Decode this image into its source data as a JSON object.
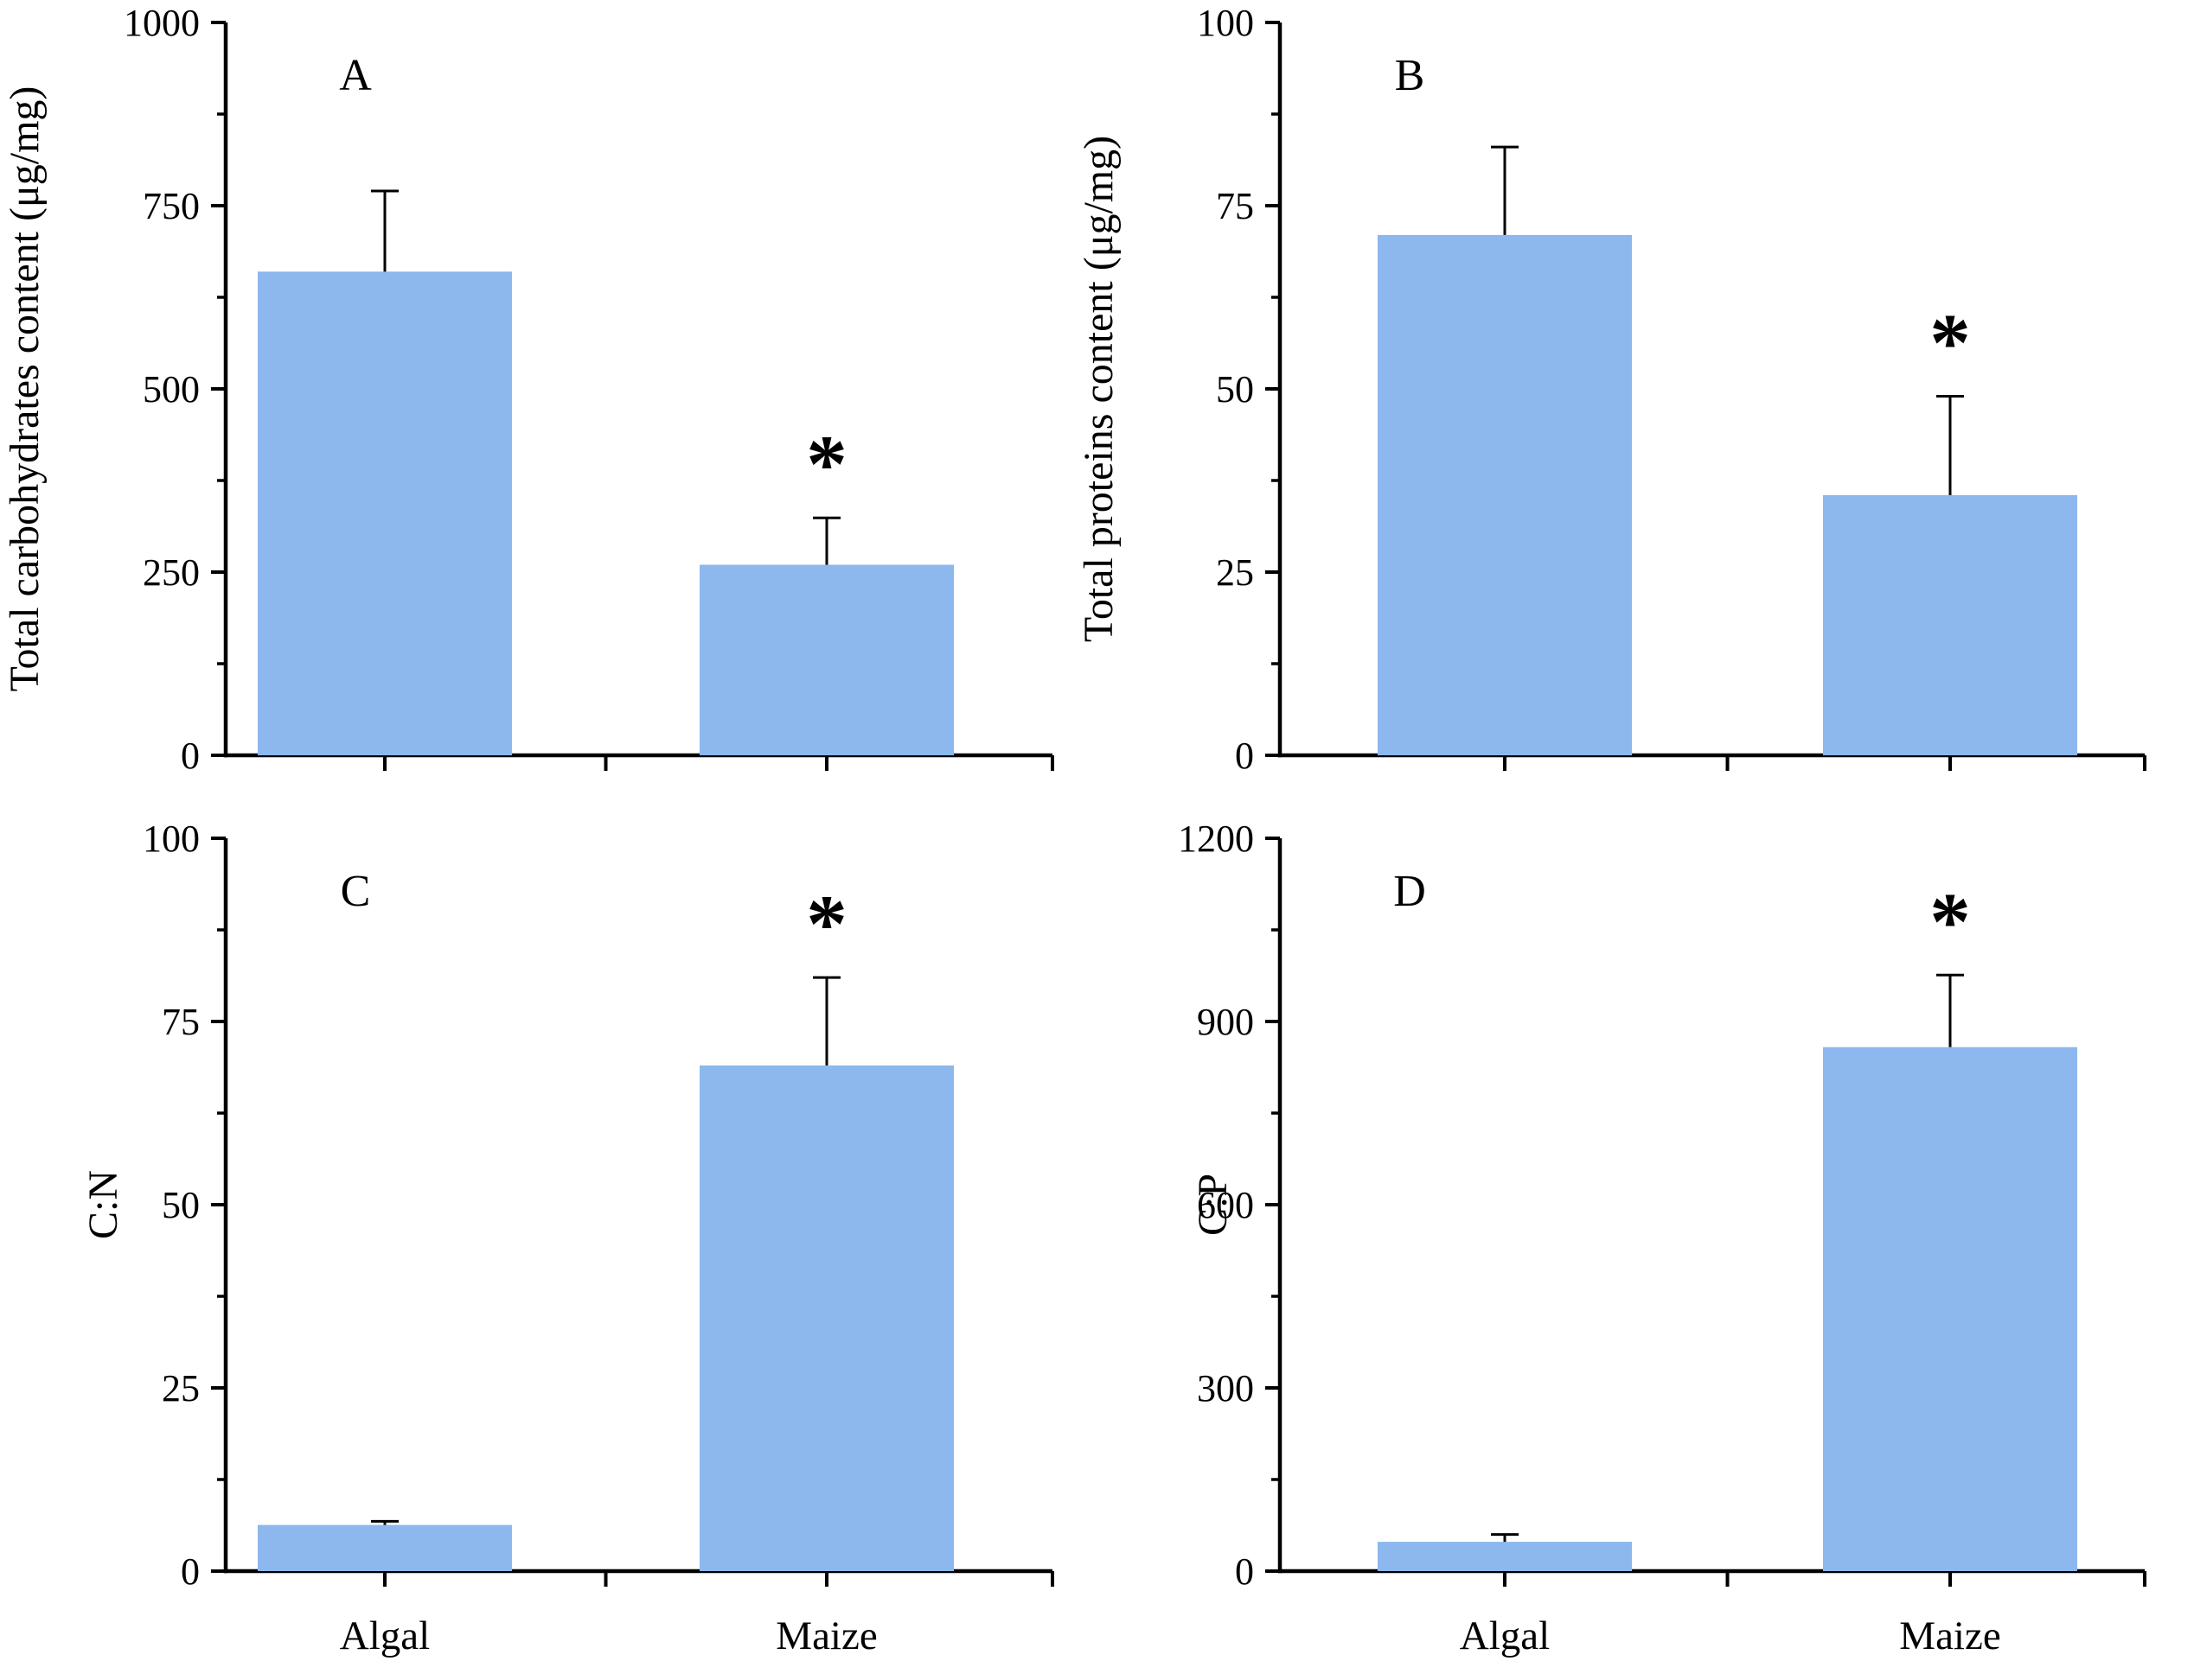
{
  "style": {
    "background": "#ffffff",
    "bar_color": "#8CB8ED",
    "axis_color": "#000000",
    "error_bar_color": "#000000",
    "significance_marker": "*"
  },
  "chart_data": [
    {
      "type": "bar",
      "panel": "A",
      "categories": [
        "Algal",
        "Maize"
      ],
      "values": [
        660,
        260
      ],
      "error_top": [
        770,
        324
      ],
      "significance": [
        "",
        "*"
      ],
      "title": "",
      "xlabel": "",
      "ylabel": "Total carbohydrates content (μg/mg)",
      "ylim": [
        0,
        1000
      ],
      "yticks": [
        0,
        250,
        500,
        750,
        1000
      ],
      "grid": false,
      "xticklabels_visible": false
    },
    {
      "type": "bar",
      "panel": "B",
      "categories": [
        "Algal",
        "Maize"
      ],
      "values": [
        71,
        35.5
      ],
      "error_top": [
        83,
        49
      ],
      "significance": [
        "",
        "*"
      ],
      "title": "",
      "xlabel": "",
      "ylabel": "Total proteins content (μg/mg)",
      "ylim": [
        0,
        100
      ],
      "yticks": [
        0,
        25,
        50,
        75,
        100
      ],
      "grid": false,
      "xticklabels_visible": false
    },
    {
      "type": "bar",
      "panel": "C",
      "categories": [
        "Algal",
        "Maize"
      ],
      "values": [
        6.3,
        69
      ],
      "error_top": [
        6.8,
        81
      ],
      "significance": [
        "",
        "*"
      ],
      "title": "",
      "xlabel": "",
      "ylabel": "C:N",
      "ylim": [
        0,
        100
      ],
      "yticks": [
        0,
        25,
        50,
        75,
        100
      ],
      "grid": false,
      "xticklabels_visible": true
    },
    {
      "type": "bar",
      "panel": "D",
      "categories": [
        "Algal",
        "Maize"
      ],
      "values": [
        48,
        858
      ],
      "error_top": [
        60,
        976
      ],
      "significance": [
        "",
        "*"
      ],
      "title": "",
      "xlabel": "",
      "ylabel": "C:P",
      "ylim": [
        0,
        1200
      ],
      "yticks": [
        0,
        300,
        600,
        900,
        1200
      ],
      "grid": false,
      "xticklabels_visible": true
    }
  ]
}
